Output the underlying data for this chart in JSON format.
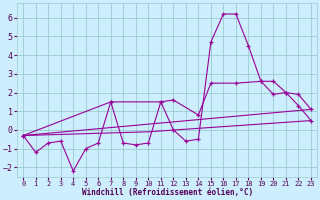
{
  "xlabel": "Windchill (Refroidissement éolien,°C)",
  "bg_color": "#cceeff",
  "grid_color": "#99cccc",
  "line_color": "#990099",
  "xlim": [
    -0.5,
    23.5
  ],
  "ylim": [
    -2.5,
    6.8
  ],
  "xticks": [
    0,
    1,
    2,
    3,
    4,
    5,
    6,
    7,
    8,
    9,
    10,
    11,
    12,
    13,
    14,
    15,
    16,
    17,
    18,
    19,
    20,
    21,
    22,
    23
  ],
  "yticks": [
    -2,
    -1,
    0,
    1,
    2,
    3,
    4,
    5,
    6
  ],
  "series": [
    {
      "points": [
        [
          0,
          -0.3
        ],
        [
          1,
          -1.2
        ],
        [
          2,
          -0.7
        ],
        [
          3,
          -0.6
        ],
        [
          4,
          -2.2
        ],
        [
          5,
          -1.0
        ],
        [
          6,
          -0.7
        ],
        [
          7,
          1.5
        ],
        [
          8,
          -0.7
        ],
        [
          9,
          -0.8
        ],
        [
          10,
          -0.7
        ],
        [
          11,
          1.5
        ],
        [
          12,
          0.0
        ],
        [
          13,
          -0.6
        ],
        [
          14,
          -0.5
        ],
        [
          15,
          4.7
        ],
        [
          16,
          6.2
        ],
        [
          17,
          6.2
        ],
        [
          18,
          4.5
        ],
        [
          19,
          2.6
        ],
        [
          20,
          1.9
        ],
        [
          21,
          2.0
        ],
        [
          22,
          1.3
        ],
        [
          23,
          0.5
        ]
      ],
      "marker": true
    },
    {
      "points": [
        [
          0,
          -0.3
        ],
        [
          7,
          1.5
        ],
        [
          11,
          1.5
        ],
        [
          12,
          1.6
        ],
        [
          14,
          0.8
        ],
        [
          15,
          2.5
        ],
        [
          17,
          2.5
        ],
        [
          19,
          2.6
        ],
        [
          20,
          2.6
        ],
        [
          21,
          2.0
        ],
        [
          22,
          1.9
        ],
        [
          23,
          1.1
        ]
      ],
      "marker": true
    },
    {
      "points": [
        [
          0,
          -0.3
        ],
        [
          23,
          1.1
        ]
      ],
      "marker": false
    },
    {
      "points": [
        [
          0,
          -0.3
        ],
        [
          10,
          -0.1
        ],
        [
          23,
          0.5
        ]
      ],
      "marker": false
    }
  ]
}
